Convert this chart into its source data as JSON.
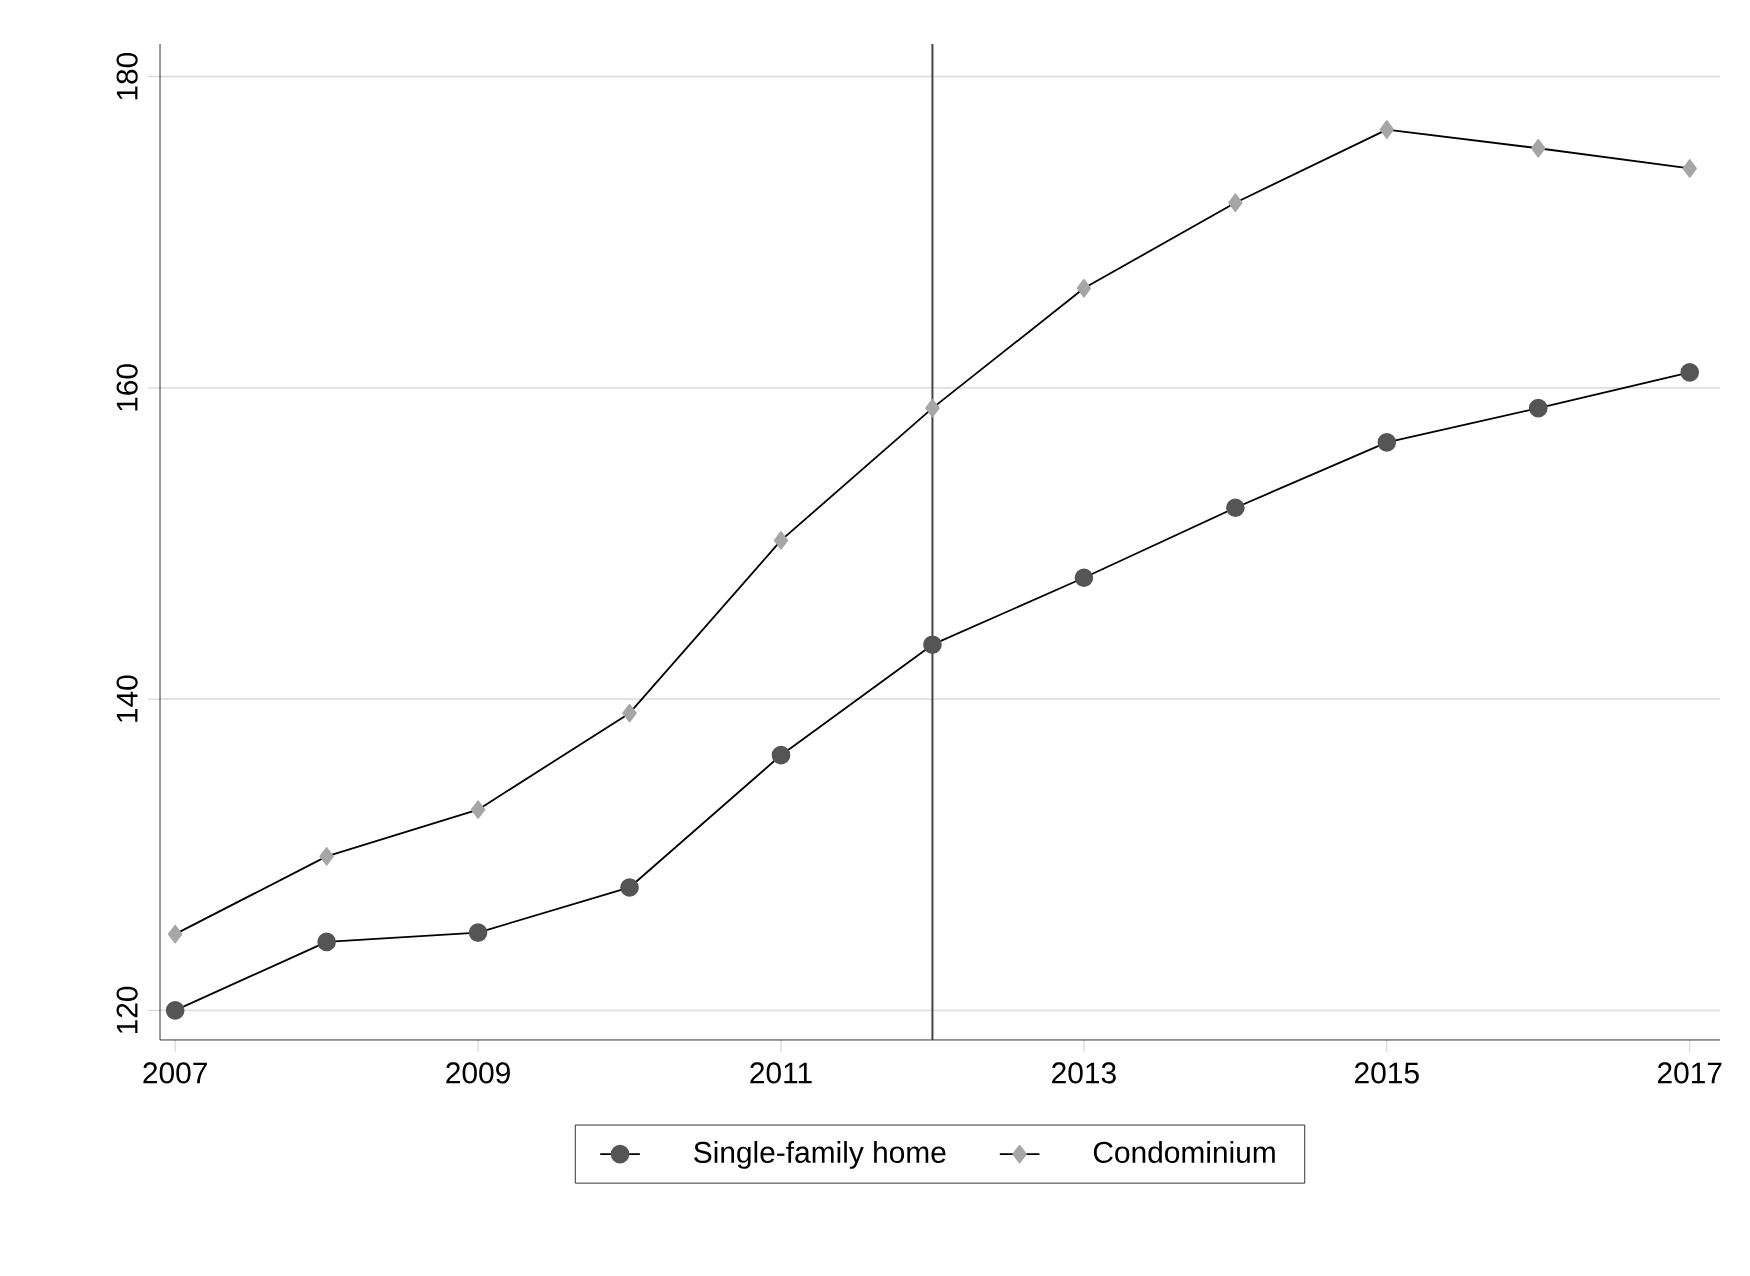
{
  "chart_data": {
    "type": "line",
    "x": [
      2007,
      2008,
      2009,
      2010,
      2011,
      2012,
      2013,
      2014,
      2015,
      2016,
      2017
    ],
    "series": [
      {
        "name": "Single-family home",
        "color": "#555555",
        "marker": "circle",
        "values": [
          120.0,
          124.4,
          125.0,
          127.9,
          136.4,
          143.5,
          147.8,
          152.3,
          156.5,
          158.7,
          161.0
        ]
      },
      {
        "name": "Condominium",
        "color": "#a6a6a6",
        "marker": "diamond",
        "values": [
          124.9,
          129.9,
          132.9,
          139.1,
          150.2,
          158.7,
          166.4,
          171.9,
          176.6,
          175.4,
          174.1
        ]
      }
    ],
    "xlim": [
      2006.9,
      2017.2
    ],
    "ylim": [
      118.1,
      182.1
    ],
    "xticks": [
      2007,
      2009,
      2011,
      2013,
      2015,
      2017
    ],
    "yticks": [
      120,
      140,
      160,
      180
    ],
    "ref_lines": [
      {
        "axis": "x",
        "value": 2012,
        "color": "#444444"
      }
    ],
    "grid": "y",
    "legend": "bottom",
    "line_style": "solid"
  }
}
